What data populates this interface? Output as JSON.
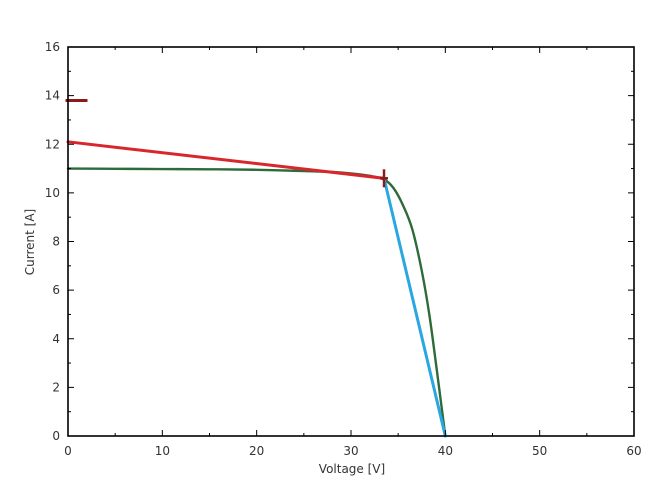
{
  "chart_data": {
    "type": "line",
    "title": "",
    "xlabel": "Voltage [V]",
    "ylabel": "Current [A]",
    "xlim": [
      0,
      60
    ],
    "ylim": [
      0,
      16
    ],
    "xticks": [
      0,
      10,
      20,
      30,
      40,
      50,
      60
    ],
    "yticks": [
      0,
      2,
      4,
      6,
      8,
      10,
      12,
      14,
      16
    ],
    "grid": false,
    "legend": "none",
    "colors": {
      "iv_curve": "#2e6b3a",
      "red_line": "#d9262c",
      "blue_line": "#2aa7e0",
      "marker": "#8b1a1a",
      "axis": "#000000"
    },
    "series": [
      {
        "x": [
          0,
          5,
          10,
          15,
          20,
          25,
          28,
          30,
          32,
          33.5,
          34.5,
          35.5,
          36.5,
          37.5,
          38.3,
          39,
          39.5,
          40
        ],
        "values": [
          11.0,
          10.99,
          10.98,
          10.97,
          10.95,
          10.9,
          10.86,
          10.8,
          10.7,
          10.55,
          10.2,
          9.5,
          8.5,
          6.8,
          5.0,
          3.0,
          1.5,
          0.0
        ]
      },
      {
        "x": [
          0,
          33.5
        ],
        "values": [
          12.1,
          10.6
        ]
      },
      {
        "x": [
          33.5,
          40
        ],
        "values": [
          10.6,
          0.0
        ]
      }
    ],
    "markers": [
      {
        "x": 0.9,
        "y": 13.8,
        "shape": "dash"
      },
      {
        "x": 33.5,
        "y": 10.6,
        "shape": "cross"
      }
    ]
  }
}
